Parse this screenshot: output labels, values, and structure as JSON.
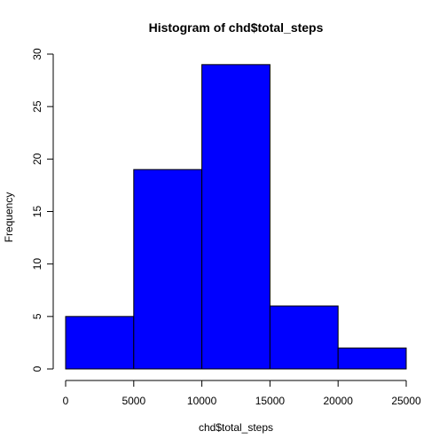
{
  "chart_data": {
    "type": "bar",
    "title": "Histogram of chd$total_steps",
    "xlabel": "chd$total_steps",
    "ylabel": "Frequency",
    "bins": [
      {
        "start": 0,
        "end": 5000,
        "count": 5
      },
      {
        "start": 5000,
        "end": 10000,
        "count": 19
      },
      {
        "start": 10000,
        "end": 15000,
        "count": 29
      },
      {
        "start": 15000,
        "end": 20000,
        "count": 6
      },
      {
        "start": 20000,
        "end": 25000,
        "count": 2
      }
    ],
    "xlim": [
      0,
      25000
    ],
    "ylim": [
      0,
      30
    ],
    "x_ticks": [
      0,
      5000,
      10000,
      15000,
      20000,
      25000
    ],
    "y_ticks": [
      0,
      5,
      10,
      15,
      20,
      25,
      30
    ],
    "bar_color": "#0000ff",
    "border_color": "#000000",
    "grid": false,
    "legend": "none"
  }
}
